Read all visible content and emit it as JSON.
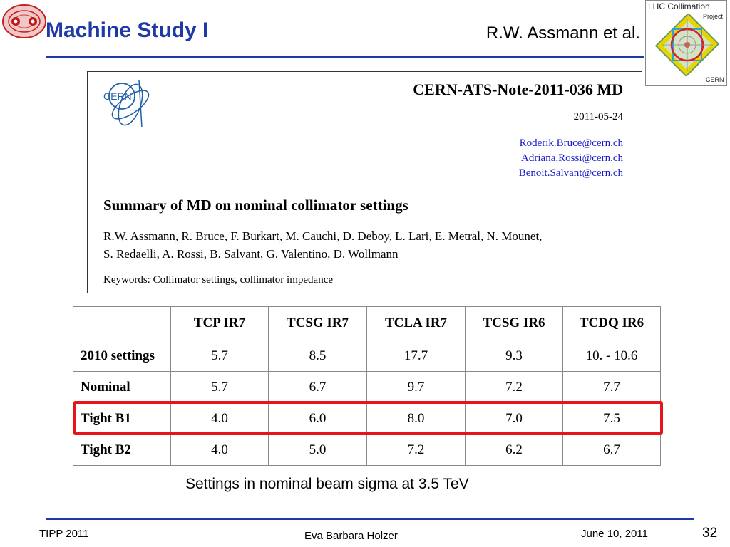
{
  "slide": {
    "title": "Machine Study I",
    "author": "R.W. Assmann et al."
  },
  "logo": {
    "line1": "LHC Collimation",
    "line2": "Project",
    "line3": "CERN"
  },
  "note": {
    "cern_logo_text": "CERN",
    "id": "CERN-ATS-Note-2011-036 MD",
    "date": "2011-05-24",
    "emails": [
      "Roderik.Bruce@cern.ch",
      "Adriana.Rossi@cern.ch",
      "Benoit.Salvant@cern.ch"
    ],
    "heading": "Summary of MD on nominal collimator settings",
    "authors_line1": "R.W. Assmann, R. Bruce, F. Burkart, M. Cauchi, D. Deboy, L. Lari, E. Metral, N. Mounet,",
    "authors_line2": "S. Redaelli, A. Rossi, B. Salvant, G. Valentino, D. Wollmann",
    "keywords": "Keywords:  Collimator settings, collimator impedance"
  },
  "table": {
    "headers": [
      "",
      "TCP IR7",
      "TCSG IR7",
      "TCLA IR7",
      "TCSG IR6",
      "TCDQ IR6"
    ],
    "rows": [
      {
        "label": "2010 settings",
        "values": [
          "5.7",
          "8.5",
          "17.7",
          "9.3",
          "10. - 10.6"
        ]
      },
      {
        "label": "Nominal",
        "values": [
          "5.7",
          "6.7",
          "9.7",
          "7.2",
          "7.7"
        ]
      },
      {
        "label": "Tight B1",
        "values": [
          "4.0",
          "6.0",
          "8.0",
          "7.0",
          "7.5"
        ]
      },
      {
        "label": "Tight B2",
        "values": [
          "4.0",
          "5.0",
          "7.2",
          "6.2",
          "6.7"
        ]
      }
    ]
  },
  "caption": "Settings in nominal beam sigma at 3.5 TeV",
  "footer": {
    "left": "TIPP 2011",
    "center": "Eva Barbara Holzer",
    "date": "June 10, 2011",
    "page": "32"
  },
  "colors": {
    "title": "#1f3aa6",
    "highlight": "#e8141b",
    "link": "#1a1acc"
  }
}
